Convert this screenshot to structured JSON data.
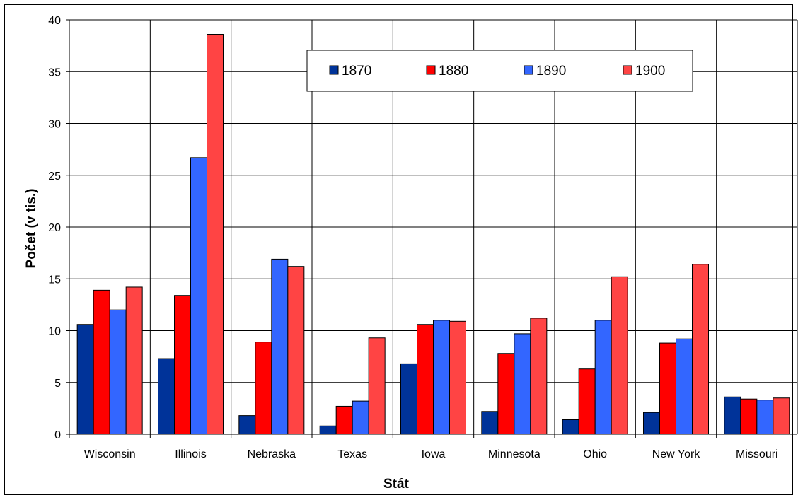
{
  "chart_data": {
    "type": "bar",
    "title": "",
    "xlabel": "Stát",
    "ylabel": "Počet (v tis.)",
    "ylim": [
      0,
      40
    ],
    "yticks": [
      0,
      5,
      10,
      15,
      20,
      25,
      30,
      35,
      40
    ],
    "grid": true,
    "legend_position": "top-right",
    "categories": [
      "Wisconsin",
      "Illinois",
      "Nebraska",
      "Texas",
      "Iowa",
      "Minnesota",
      "Ohio",
      "New York",
      "Missouri"
    ],
    "series": [
      {
        "name": "1870",
        "color": "#003399",
        "values": [
          10.6,
          7.3,
          1.8,
          0.8,
          6.8,
          2.2,
          1.4,
          2.1,
          3.6
        ]
      },
      {
        "name": "1880",
        "color": "#FF0000",
        "values": [
          13.9,
          13.4,
          8.9,
          2.7,
          10.6,
          7.8,
          6.3,
          8.8,
          3.4
        ]
      },
      {
        "name": "1890",
        "color": "#3366FF",
        "values": [
          12.0,
          26.7,
          16.9,
          3.2,
          11.0,
          9.7,
          11.0,
          9.2,
          3.3
        ]
      },
      {
        "name": "1900",
        "color": "#FF4444",
        "values": [
          14.2,
          38.6,
          16.2,
          9.3,
          10.9,
          11.2,
          15.2,
          16.4,
          3.5
        ]
      }
    ]
  }
}
